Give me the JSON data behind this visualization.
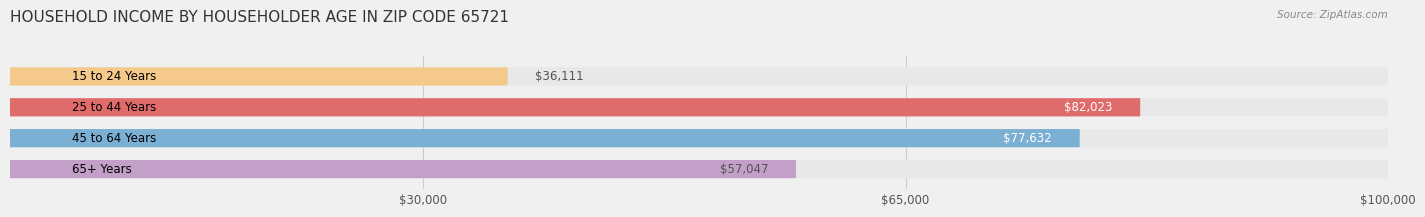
{
  "title": "HOUSEHOLD INCOME BY HOUSEHOLDER AGE IN ZIP CODE 65721",
  "source": "Source: ZipAtlas.com",
  "categories": [
    "15 to 24 Years",
    "25 to 44 Years",
    "45 to 64 Years",
    "65+ Years"
  ],
  "values": [
    36111,
    82023,
    77632,
    57047
  ],
  "bar_colors": [
    "#f5c98a",
    "#e06b6b",
    "#7bafd4",
    "#c3a0c8"
  ],
  "label_colors": [
    "#555555",
    "#ffffff",
    "#ffffff",
    "#555555"
  ],
  "xmax": 100000,
  "xticks": [
    30000,
    65000,
    100000
  ],
  "xtick_labels": [
    "$30,000",
    "$65,000",
    "$100,000"
  ],
  "bar_height": 0.55,
  "background_color": "#f0f0f0",
  "bar_bg_color": "#e8e8e8",
  "title_fontsize": 11,
  "label_fontsize": 8.5,
  "value_fontsize": 8.5
}
